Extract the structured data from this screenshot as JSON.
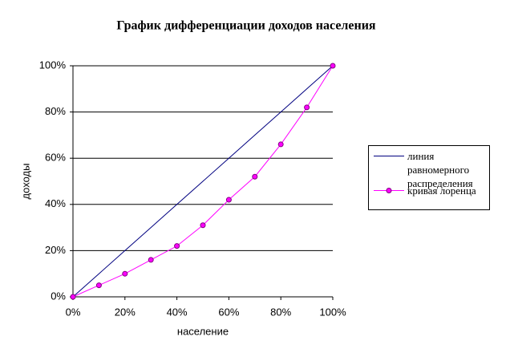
{
  "chart_data": {
    "type": "line",
    "title": "График дифференциации доходов населения",
    "x_label": "население",
    "y_label": "доходы",
    "x": [
      0,
      10,
      20,
      30,
      40,
      50,
      60,
      70,
      80,
      90,
      100
    ],
    "series": [
      {
        "name": "линия равномерного распределения",
        "color": "#000080",
        "marker": false,
        "values": [
          0,
          10,
          20,
          30,
          40,
          50,
          60,
          70,
          80,
          90,
          100
        ]
      },
      {
        "name": "кривая лоренца",
        "color": "#ff00ff",
        "marker": true,
        "values": [
          0,
          5,
          10,
          16,
          22,
          31,
          42,
          52,
          66,
          82,
          100
        ]
      }
    ],
    "xlim": [
      0,
      100
    ],
    "ylim": [
      0,
      100
    ],
    "xticks": [
      {
        "value": 0,
        "label": "0%"
      },
      {
        "value": 20,
        "label": "20%"
      },
      {
        "value": 40,
        "label": "40%"
      },
      {
        "value": 60,
        "label": "60%"
      },
      {
        "value": 80,
        "label": "80%"
      },
      {
        "value": 100,
        "label": "100%"
      }
    ],
    "yticks": [
      {
        "value": 0,
        "label": "0%"
      },
      {
        "value": 20,
        "label": "20%"
      },
      {
        "value": 40,
        "label": "40%"
      },
      {
        "value": 60,
        "label": "60%"
      },
      {
        "value": 80,
        "label": "80%"
      },
      {
        "value": 100,
        "label": "100%"
      }
    ],
    "grid": true,
    "legend": "right"
  }
}
